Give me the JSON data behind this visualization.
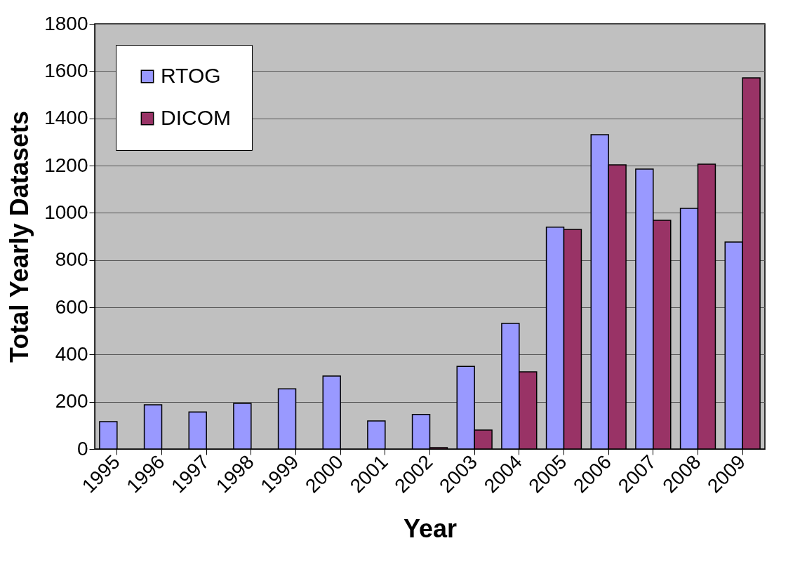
{
  "chart_data": {
    "type": "bar",
    "xlabel": "Year",
    "ylabel": "Total Yearly Datasets",
    "categories": [
      "1995",
      "1996",
      "1997",
      "1998",
      "1999",
      "2000",
      "2001",
      "2002",
      "2003",
      "2004",
      "2005",
      "2006",
      "2007",
      "2008",
      "2009"
    ],
    "series": [
      {
        "name": "RTOG",
        "color": "#9999ff",
        "values": [
          116,
          187,
          157,
          193,
          255,
          309,
          119,
          146,
          350,
          532,
          939,
          1331,
          1185,
          1019,
          876
        ]
      },
      {
        "name": "DICOM",
        "color": "#993366",
        "values": [
          null,
          null,
          null,
          null,
          null,
          null,
          null,
          6,
          80,
          327,
          930,
          1203,
          968,
          1206,
          1571
        ]
      }
    ],
    "ylim": [
      0,
      1800
    ],
    "yticks": [
      0,
      200,
      400,
      600,
      800,
      1000,
      1200,
      1400,
      1600,
      1800
    ],
    "grid": "y",
    "legend": "top left"
  }
}
